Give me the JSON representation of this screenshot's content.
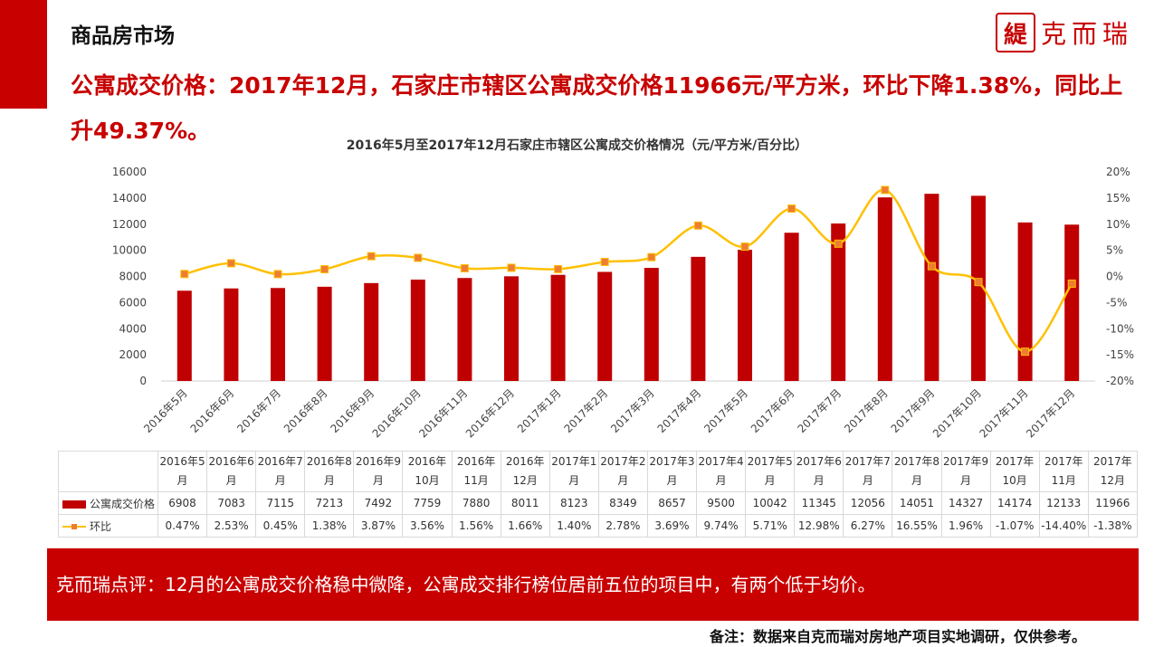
{
  "header": {
    "title": "商品房市场",
    "logo_seal": "緹",
    "logo_text": "克而瑞",
    "headline": "公寓成交价格：2017年12月，石家庄市辖区公寓成交价格11966元/平方米，环比下降1.38%，同比上升49.37%。"
  },
  "colors": {
    "bar": "#c00000",
    "line": "#ffc000",
    "marker": "#ed7d31",
    "accent": "#c80000"
  },
  "chart_data": {
    "type": "bar",
    "title": "2016年5月至2017年12月石家庄市辖区公寓成交价格情况（元/平方米/百分比）",
    "categories": [
      "2016年5月",
      "2016年6月",
      "2016年7月",
      "2016年8月",
      "2016年9月",
      "2016年10月",
      "2016年11月",
      "2016年12月",
      "2017年1月",
      "2017年2月",
      "2017年3月",
      "2017年4月",
      "2017年5月",
      "2017年6月",
      "2017年7月",
      "2017年8月",
      "2017年9月",
      "2017年10月",
      "2017年11月",
      "2017年12月"
    ],
    "table_headers": [
      [
        "2016年5",
        "月"
      ],
      [
        "2016年6",
        "月"
      ],
      [
        "2016年7",
        "月"
      ],
      [
        "2016年8",
        "月"
      ],
      [
        "2016年9",
        "月"
      ],
      [
        "2016年",
        "10月"
      ],
      [
        "2016年",
        "11月"
      ],
      [
        "2016年",
        "12月"
      ],
      [
        "2017年1",
        "月"
      ],
      [
        "2017年2",
        "月"
      ],
      [
        "2017年3",
        "月"
      ],
      [
        "2017年4",
        "月"
      ],
      [
        "2017年5",
        "月"
      ],
      [
        "2017年6",
        "月"
      ],
      [
        "2017年7",
        "月"
      ],
      [
        "2017年8",
        "月"
      ],
      [
        "2017年9",
        "月"
      ],
      [
        "2017年",
        "10月"
      ],
      [
        "2017年",
        "11月"
      ],
      [
        "2017年",
        "12月"
      ]
    ],
    "series": [
      {
        "name": "公寓成交价格",
        "type": "bar",
        "axis": "left",
        "values": [
          6908,
          7083,
          7115,
          7213,
          7492,
          7759,
          7880,
          8011,
          8123,
          8349,
          8657,
          9500,
          10042,
          11345,
          12056,
          14051,
          14327,
          14174,
          12133,
          11966
        ]
      },
      {
        "name": "环比",
        "type": "line",
        "axis": "right",
        "values": [
          0.47,
          2.53,
          0.45,
          1.38,
          3.87,
          3.56,
          1.56,
          1.66,
          1.4,
          2.78,
          3.69,
          9.74,
          5.71,
          12.98,
          6.27,
          16.55,
          1.96,
          -1.07,
          -14.4,
          -1.38
        ],
        "labels": [
          "0.47%",
          "2.53%",
          "0.45%",
          "1.38%",
          "3.87%",
          "3.56%",
          "1.56%",
          "1.66%",
          "1.40%",
          "2.78%",
          "3.69%",
          "9.74%",
          "5.71%",
          "12.98%",
          "6.27%",
          "16.55%",
          "1.96%",
          "-1.07%",
          "-14.40%",
          "-1.38%"
        ]
      }
    ],
    "ylim_left": [
      0,
      16000
    ],
    "yticks_left": [
      "0",
      "2000",
      "4000",
      "6000",
      "8000",
      "10000",
      "12000",
      "14000",
      "16000"
    ],
    "ylim_right": [
      -20,
      20
    ],
    "yticks_right": [
      "-20%",
      "-15%",
      "-10%",
      "-5%",
      "0%",
      "5%",
      "10%",
      "15%",
      "20%"
    ],
    "grid": false
  },
  "comment": "克而瑞点评：12月的公寓成交价格稳中微降，公寓成交排行榜位居前五位的项目中，有两个低于均价。",
  "footnote": "备注：数据来自克而瑞对房地产项目实地调研，仅供参考。"
}
